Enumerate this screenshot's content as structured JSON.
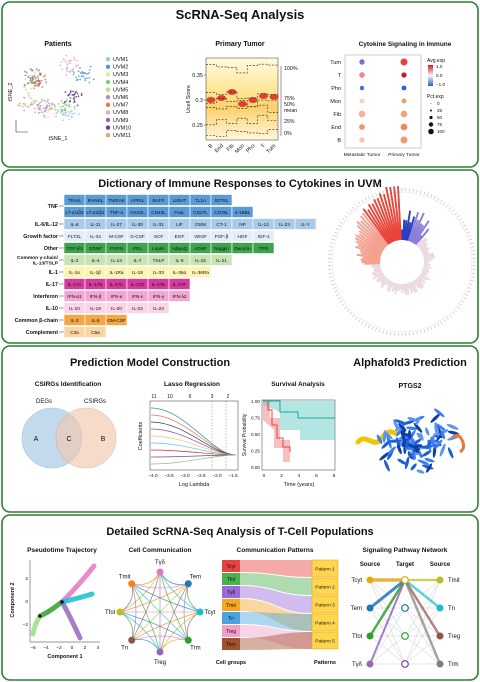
{
  "s1": {
    "title": "ScRNA-Seq Analysis",
    "patients": {
      "title": "Patients",
      "y_label": "tSNE_2",
      "x_label": "tSNE_1",
      "legend": [
        "UVM1",
        "UVM2",
        "UVM3",
        "UVM4",
        "UVM5",
        "UVM6",
        "UVM7",
        "UVM8",
        "UVM9",
        "UVM10",
        "UVM11"
      ],
      "colors": [
        "#9ecae1",
        "#4f9bd1",
        "#e8e3a0",
        "#7fc97f",
        "#b8e186",
        "#b38ad6",
        "#e8793a",
        "#f4a3c0",
        "#8c6bb1",
        "#6a3d9a",
        "#c9b27c"
      ]
    },
    "primary": {
      "title": "Primary Tumor",
      "y_label": "Ucell Score",
      "y_ticks": [
        "0.35",
        "0.3",
        "0.25"
      ],
      "categories": [
        "B",
        "End",
        "Fib",
        "Mon",
        "Pho",
        "T",
        "Tum"
      ],
      "quantiles": [
        "100%",
        "75%",
        "50%",
        "mean",
        "25%",
        "0%"
      ]
    },
    "cytokine": {
      "title": "Cytokine Signaling in Immune",
      "rows": [
        "Tum",
        "T",
        "Pho",
        "Mon",
        "Fib",
        "End",
        "B"
      ],
      "columns": [
        "Metastatic Tumor",
        "Primary Tumor"
      ],
      "avg_title": "Avg.exp",
      "avg_ticks": [
        "1.0",
        "0.0",
        "−1.0"
      ],
      "pct_title": "Pct.exp",
      "pct_ticks": [
        "0",
        "25",
        "50",
        "75",
        "100"
      ]
    }
  },
  "s2": {
    "title": "Dictionary of Immune Responses to Cytokines in UVM",
    "families": [
      {
        "label": "TNF",
        "color": "#5b9bd5",
        "rows": [
          [
            "TRAIL",
            "RANKL",
            "TWEAK",
            "APRIL",
            "BAFF",
            "LIGHT",
            "TL1A",
            "GITRL"
          ],
          [
            "LT-α1/β2",
            "LT-α2/β1",
            "TNF-α",
            "OX40L",
            "CD40L",
            "FasL",
            "CD27L",
            "CD30L",
            "4-1BBL"
          ]
        ]
      },
      {
        "label": "IL-6/IL-12",
        "color": "#a9cbe9",
        "rows": [
          [
            "IL-6",
            "IL-11",
            "IL-27",
            "IL-30",
            "IL-31",
            "LIF",
            "OSM",
            "CT-1",
            "NP",
            "IL-12",
            "IL-23",
            "IL-Y"
          ]
        ]
      },
      {
        "label": "Growth factor",
        "color": "#e3edf8",
        "rows": [
          [
            "FLT3L",
            "IL-34",
            "M-CSF",
            "G-CSF",
            "SCF",
            "EGF",
            "VEGF",
            "FGF-β",
            "HGF",
            "IGF-1"
          ]
        ]
      },
      {
        "label": "Other",
        "color": "#3fa34d",
        "rows": [
          [
            "TGF-β1",
            "GDNF",
            "PSPN",
            "PRL",
            "Leptin",
            "AdipoQ",
            "ADSF",
            "Noggin",
            "Decorin",
            "TPO"
          ]
        ]
      },
      {
        "label": [
          "Common γ-chain/",
          "IL-13/TSLP"
        ],
        "color": "#c9e4b4",
        "rows": [
          [
            "IL-2",
            "IL-4",
            "IL-13",
            "IL-7",
            "TSLP",
            "IL-9",
            "IL-15",
            "IL-21"
          ]
        ]
      },
      {
        "label": "IL-1",
        "color": "#fff3b0",
        "rows": [
          [
            "IL-1α",
            "IL-1β",
            "IL-1Ra",
            "IL-18",
            "IL-33",
            "IL-36α",
            "IL-36Ra"
          ]
        ]
      },
      {
        "label": "IL-17",
        "color": "#d63a9c",
        "rows": [
          [
            "IL-17A",
            "IL-17B",
            "IL-17C",
            "IL-17D",
            "IL-17E",
            "IL-17F"
          ]
        ]
      },
      {
        "label": "Interferon",
        "color": "#f3a6cf",
        "rows": [
          [
            "IFN-α1",
            "IFN-β",
            "IFN-κ",
            "IFN-ε",
            "IFN-γ",
            "IFN-λ2"
          ]
        ]
      },
      {
        "label": "IL-10",
        "color": "#f9d5e7",
        "rows": [
          [
            "IL-10",
            "IL-19",
            "IL-20",
            "IL-22",
            "IL-24"
          ]
        ]
      },
      {
        "label": "Common β-chain",
        "color": "#f3a843",
        "rows": [
          [
            "IL-3",
            "IL-5",
            "GM-CSF"
          ]
        ]
      },
      {
        "label": "Complement",
        "color": "#fbd6a3",
        "rows": [
          [
            "C3a",
            "C5a"
          ]
        ]
      }
    ]
  },
  "s3": {
    "title": "Prediction Model Construction",
    "alphafold_title": "Alphafold3 Prediction",
    "venn": {
      "title": "CSIRGs Identification",
      "sets": [
        "DEGs",
        "CSIRGs"
      ],
      "regions": [
        "A",
        "C",
        "B"
      ]
    },
    "lasso": {
      "title": "Lasso Regression",
      "top_ticks": [
        "11",
        "10",
        "6",
        "3",
        "2"
      ],
      "y_label": "Coefficients",
      "x_label": "Log Lambda",
      "x_ticks": [
        "−4.0",
        "−3.5",
        "−3.0",
        "−2.5",
        "−2.0",
        "−1.5"
      ]
    },
    "survival": {
      "title": "Survival Analysis",
      "y_label": "Survival Probability",
      "y_ticks": [
        "1.00",
        "0.75",
        "0.50",
        "0.25",
        "0.00"
      ],
      "x_label": "Time (years)",
      "x_ticks": [
        "0",
        "2",
        "4",
        "6",
        "8"
      ]
    },
    "protein": {
      "title": "PTGS2"
    }
  },
  "s4": {
    "title": "Detailed ScRNA-Seq Analysis of T-Cell Populations",
    "pseudotime": {
      "title": "Pseudotime Trajectory",
      "x_label": "Component 1",
      "y_label": "Component 2",
      "x_ticks": [
        "−6",
        "−4",
        "−2",
        "0",
        "2",
        "4"
      ],
      "y_ticks": [
        "−2",
        "0",
        "2"
      ]
    },
    "communication": {
      "title": "Cell Communication",
      "nodes": [
        "Tγδ",
        "Tem",
        "Tcyt",
        "Trm",
        "Treg",
        "Tn",
        "Tfol",
        "Tmit"
      ],
      "colors": [
        "#e377c2",
        "#1f77b4",
        "#17becf",
        "#2ca02c",
        "#9467bd",
        "#8c564b",
        "#bcbd22",
        "#ff7f0e"
      ]
    },
    "patterns": {
      "title": "Communication Patterns",
      "groups": [
        "Tcyt",
        "Tfol",
        "Tγδ",
        "Tmit",
        "Tn",
        "Treg",
        "Tem"
      ],
      "group_colors": [
        "#e8423f",
        "#4caf50",
        "#9c6ad6",
        "#f5a623",
        "#4aa3df",
        "#f2a0c8",
        "#a0522d"
      ],
      "patterns": [
        "Pattern 1",
        "Pattern 2",
        "Pattern 3",
        "Pattern 4",
        "Pattern 5"
      ],
      "groups_label": "Cell groups",
      "patterns_label": "Patterns"
    },
    "network": {
      "title": "Signaling Pathway Network",
      "headers": [
        "Source",
        "Target",
        "Source"
      ],
      "left": [
        "Tcyt",
        "Tem",
        "Tfol",
        "Tγδ"
      ],
      "right": [
        "Tmit",
        "Tn",
        "Treg",
        "Trm"
      ],
      "left_colors": [
        "#e6a817",
        "#1f77b4",
        "#2ca02c",
        "#9467bd"
      ],
      "right_colors": [
        "#bcbd22",
        "#17becf",
        "#8c564b",
        "#7f7f7f"
      ]
    }
  }
}
